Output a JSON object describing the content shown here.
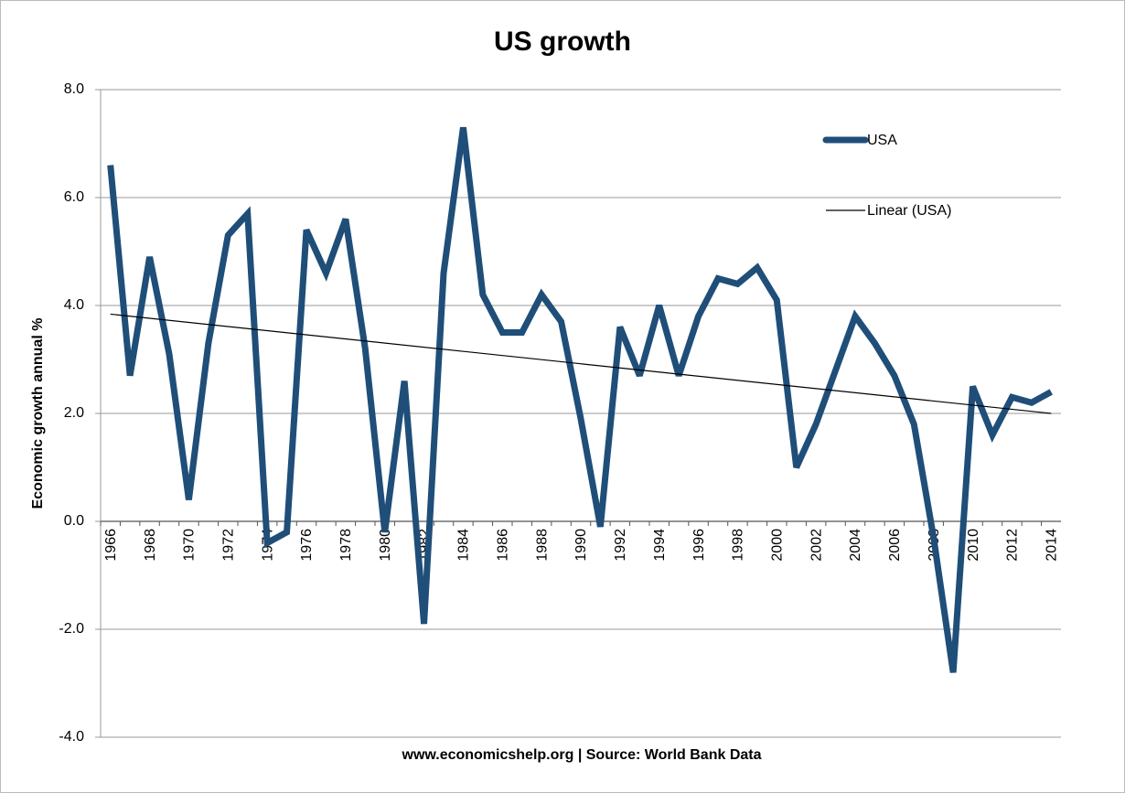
{
  "chart_data": {
    "type": "line",
    "title": "US growth",
    "y_label": "Economic growth annual %",
    "footer": "www.economicshelp.org | Source: World Bank Data",
    "categories": [
      "1966",
      null,
      "1968",
      null,
      "1970",
      null,
      "1972",
      null,
      "1974",
      null,
      "1976",
      null,
      "1978",
      null,
      "1980",
      null,
      "1982",
      null,
      "1984",
      null,
      "1986",
      null,
      "1988",
      null,
      "1990",
      null,
      "1992",
      null,
      "1994",
      null,
      "1996",
      null,
      "1998",
      null,
      "2000",
      null,
      "2002",
      null,
      "2004",
      null,
      "2006",
      null,
      "2008",
      null,
      "2010",
      null,
      "2012",
      null,
      "2014"
    ],
    "series": [
      {
        "name": "USA",
        "color": "#1f4e79",
        "values": [
          6.6,
          2.7,
          4.9,
          3.1,
          0.4,
          3.3,
          5.3,
          5.7,
          -0.4,
          -0.2,
          5.4,
          4.6,
          5.6,
          3.2,
          -0.2,
          2.6,
          -1.9,
          4.6,
          7.3,
          4.2,
          3.5,
          3.5,
          4.2,
          3.7,
          1.9,
          -0.1,
          3.6,
          2.7,
          4.0,
          2.7,
          3.8,
          4.5,
          4.4,
          4.7,
          4.1,
          1.0,
          1.8,
          2.8,
          3.8,
          3.3,
          2.7,
          1.8,
          -0.3,
          -2.8,
          2.5,
          1.6,
          2.3,
          2.2,
          2.4
        ]
      }
    ],
    "trendline": {
      "name": "Linear (USA)",
      "color": "#000000",
      "start": 3.84,
      "end": 2.0
    },
    "ylim": [
      -4,
      8
    ],
    "yticks": [
      {
        "value": -4,
        "label": "-4.0"
      },
      {
        "value": -2,
        "label": "-2.0"
      },
      {
        "value": 0,
        "label": "0.0"
      },
      {
        "value": 2,
        "label": "2.0"
      },
      {
        "value": 4,
        "label": "4.0"
      },
      {
        "value": 6,
        "label": "6.0"
      },
      {
        "value": 8,
        "label": "8.0"
      }
    ],
    "grid": true,
    "legend": "upper right"
  }
}
